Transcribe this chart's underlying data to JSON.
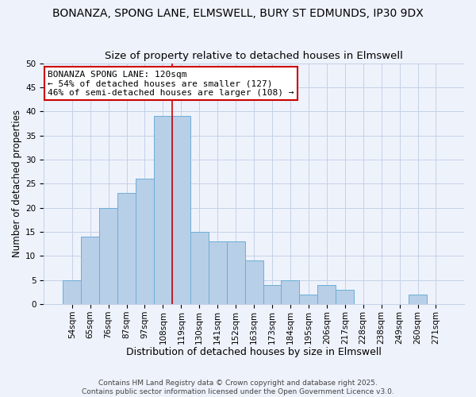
{
  "title": "BONANZA, SPONG LANE, ELMSWELL, BURY ST EDMUNDS, IP30 9DX",
  "subtitle": "Size of property relative to detached houses in Elmswell",
  "xlabel": "Distribution of detached houses by size in Elmswell",
  "ylabel": "Number of detached properties",
  "bar_labels": [
    "54sqm",
    "65sqm",
    "76sqm",
    "87sqm",
    "97sqm",
    "108sqm",
    "119sqm",
    "130sqm",
    "141sqm",
    "152sqm",
    "163sqm",
    "173sqm",
    "184sqm",
    "195sqm",
    "206sqm",
    "217sqm",
    "228sqm",
    "238sqm",
    "249sqm",
    "260sqm",
    "271sqm"
  ],
  "bar_values": [
    5,
    14,
    20,
    23,
    26,
    39,
    39,
    15,
    13,
    13,
    9,
    4,
    5,
    2,
    4,
    3,
    0,
    0,
    0,
    2,
    0
  ],
  "bar_color": "#b8cfe8",
  "bar_edge_color": "#6baed6",
  "background_color": "#eef2fb",
  "grid_color": "#c5d0e8",
  "vline_x_index": 6,
  "vline_color": "#cc0000",
  "annotation_line1": "BONANZA SPONG LANE: 120sqm",
  "annotation_line2": "← 54% of detached houses are smaller (127)",
  "annotation_line3": "46% of semi-detached houses are larger (108) →",
  "annotation_box_edgecolor": "#cc0000",
  "ylim": [
    0,
    50
  ],
  "yticks": [
    0,
    5,
    10,
    15,
    20,
    25,
    30,
    35,
    40,
    45,
    50
  ],
  "footer_line1": "Contains HM Land Registry data © Crown copyright and database right 2025.",
  "footer_line2": "Contains public sector information licensed under the Open Government Licence v3.0.",
  "title_fontsize": 10,
  "subtitle_fontsize": 9.5,
  "xlabel_fontsize": 9,
  "ylabel_fontsize": 8.5,
  "tick_fontsize": 7.5,
  "annotation_fontsize": 8,
  "footer_fontsize": 6.5
}
